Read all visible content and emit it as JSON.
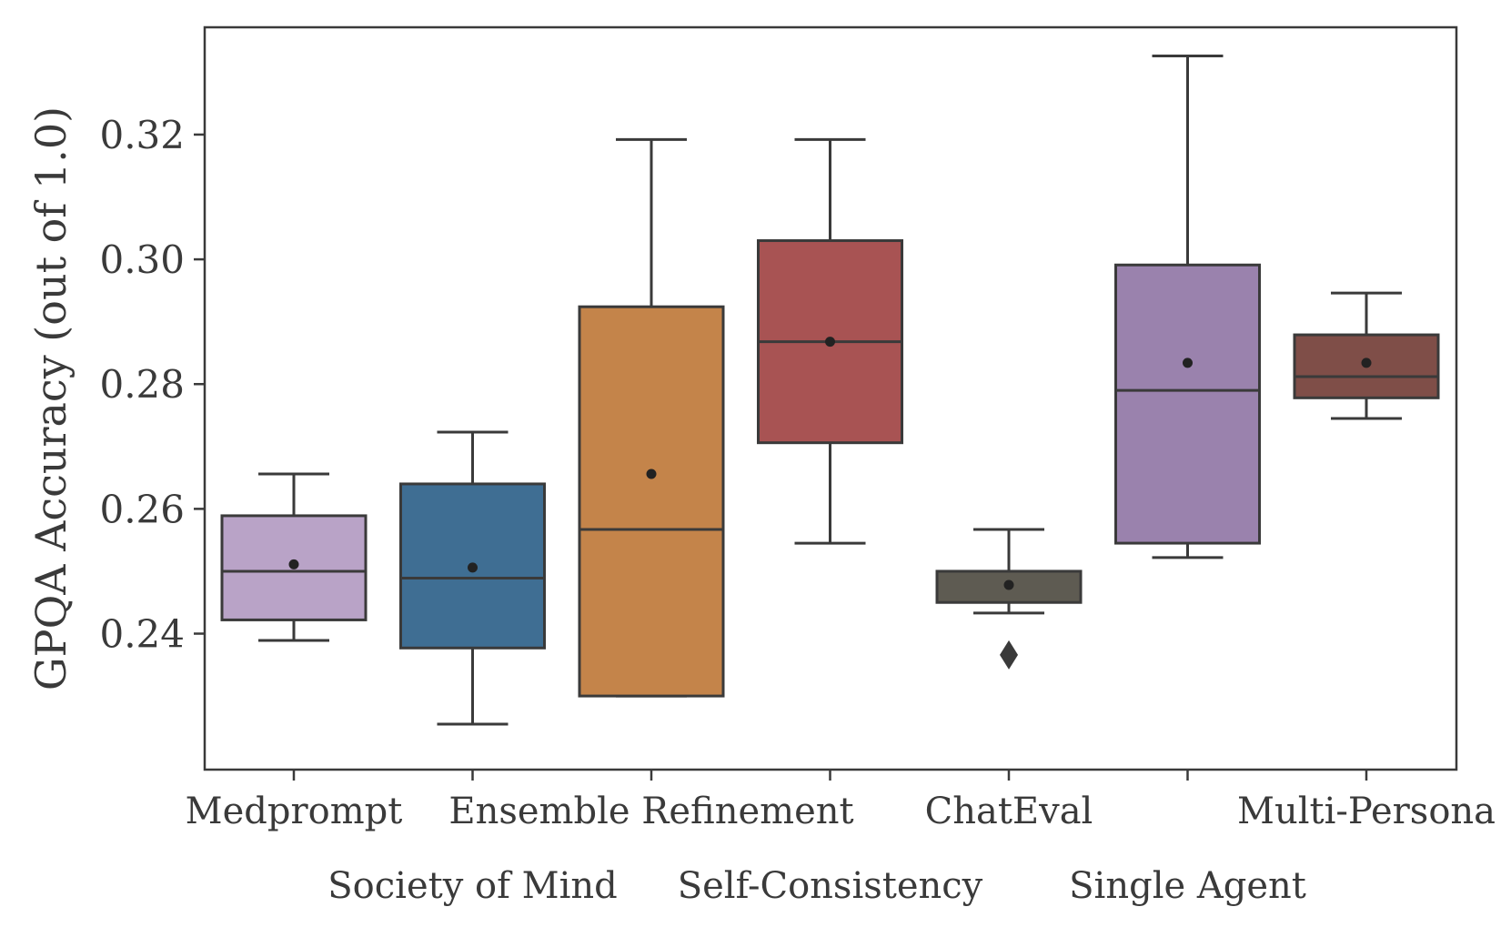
{
  "chart_data": {
    "type": "box",
    "ylabel": "GPQA Accuracy (out of 1.0)",
    "xlabel": "",
    "ylim": [
      0.2182,
      0.3372
    ],
    "yticks": [
      0.24,
      0.26,
      0.28,
      0.3,
      0.32
    ],
    "ytick_labels": [
      "0.24",
      "0.26",
      "0.28",
      "0.30",
      "0.32"
    ],
    "grid": false,
    "legend": "none",
    "stroke_color": "#3a3a3a",
    "series": [
      {
        "name": "Medprompt",
        "label_row": 1,
        "color": "#b9a3c7",
        "whisker_low": 0.2389,
        "q1": 0.2422,
        "median": 0.25,
        "q3": 0.2589,
        "whisker_high": 0.2656,
        "mean": 0.2511,
        "outliers": []
      },
      {
        "name": "Society of Mind",
        "label_row": 2,
        "color": "#3f6e93",
        "whisker_low": 0.2255,
        "q1": 0.2377,
        "median": 0.2489,
        "q3": 0.264,
        "whisker_high": 0.2723,
        "mean": 0.2506,
        "outliers": []
      },
      {
        "name": "Ensemble Refinement",
        "label_row": 1,
        "color": "#c4844a",
        "whisker_low": 0.23,
        "q1": 0.23,
        "median": 0.2567,
        "q3": 0.2924,
        "whisker_high": 0.3192,
        "mean": 0.2656,
        "outliers": []
      },
      {
        "name": "Self-Consistency",
        "label_row": 2,
        "color": "#a85353",
        "whisker_low": 0.2545,
        "q1": 0.2706,
        "median": 0.2868,
        "q3": 0.303,
        "whisker_high": 0.3192,
        "mean": 0.2868,
        "outliers": []
      },
      {
        "name": "ChatEval",
        "label_row": 1,
        "color": "#5e5b52",
        "whisker_low": 0.2433,
        "q1": 0.245,
        "median": 0.25,
        "q3": 0.25,
        "whisker_high": 0.2567,
        "mean": 0.2478,
        "outliers": [
          0.2366
        ]
      },
      {
        "name": "Single Agent",
        "label_row": 2,
        "color": "#9a82ad",
        "whisker_low": 0.2522,
        "q1": 0.2545,
        "median": 0.279,
        "q3": 0.2991,
        "whisker_high": 0.3326,
        "mean": 0.2834,
        "outliers": []
      },
      {
        "name": "Multi-Persona",
        "label_row": 1,
        "color": "#7f4e48",
        "whisker_low": 0.2745,
        "q1": 0.2778,
        "median": 0.2812,
        "q3": 0.2879,
        "whisker_high": 0.2946,
        "mean": 0.2834,
        "outliers": []
      }
    ]
  }
}
